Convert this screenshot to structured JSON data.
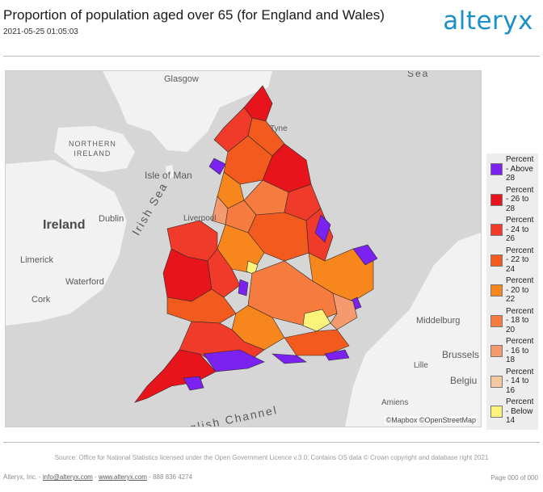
{
  "header": {
    "title": "Proportion of population aged over 65 (for England and Wales)",
    "datetime": "2021-05-25 01:05:03",
    "logo": "alteryx"
  },
  "map": {
    "labels": {
      "sea_top": "Sea",
      "glasgow": "Glasgow",
      "northern_ireland": "NORTHERN\nIRELAND",
      "isle_of_man": "Isle of Man",
      "irish_sea": "Irish Sea",
      "ireland": "Ireland",
      "dublin": "Dublin",
      "limerick": "Limerick",
      "waterford": "Waterford",
      "cork": "Cork",
      "liverpool": "Liverpool",
      "tyne": "Tyne",
      "middelburg": "Middelburg",
      "brussels": "Brussels",
      "lille": "Lille",
      "belgium": "Belgiu",
      "amiens": "Amiens",
      "english_channel": "English Channel"
    },
    "scale": {
      "ticks": [
        "0",
        "42",
        "84",
        "126"
      ],
      "unit": "mi"
    },
    "attribution": "©Mapbox ©OpenStreetMap",
    "colors": {
      "land": "#f2f2f2",
      "sea": "#d6d6d6",
      "border": "#2a2a2a"
    }
  },
  "legend": [
    {
      "label": "Percent\n- Above\n28",
      "color": "#7b22f0"
    },
    {
      "label": "Percent\n- 26 to\n28",
      "color": "#e8141b"
    },
    {
      "label": "Percent\n- 24 to\n26",
      "color": "#f03a2a"
    },
    {
      "label": "Percent\n- 22 to\n24",
      "color": "#f25a1e"
    },
    {
      "label": "Percent\n- 20 to\n22",
      "color": "#f7861c"
    },
    {
      "label": "Percent\n- 18 to\n20",
      "color": "#f57c3e"
    },
    {
      "label": "Percent\n- 16 to\n18",
      "color": "#f59a6e"
    },
    {
      "label": "Percent\n- 14 to\n16",
      "color": "#f7c9a2"
    },
    {
      "label": "Percent\n- Below\n14",
      "color": "#fbf37a"
    }
  ],
  "footer": {
    "source": "Source: Office for National Statistics licensed under the Open Government Licence v.3.0; Contains OS data © Crown copyright and database right 2021",
    "company": "Alteryx, Inc. - ",
    "email": "info@alteryx.com",
    "sep": " - ",
    "website": "www.alteryx.com",
    "phone": " - 888 836 4274",
    "page": "Page 000 of 000"
  }
}
